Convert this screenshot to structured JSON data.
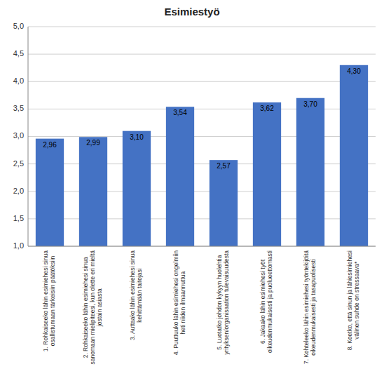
{
  "chart_data": {
    "type": "bar",
    "title": "Esimiestyö",
    "categories": [
      "1. Rohkaiseeko lähin esimiehesi sinua\nosallistumaan tärkeisiin päätöksiin",
      "2. Rohkaiseeko lähin esimiehesi sinua\nsanomaan mielipiteesi, kun olette eri mieltä\njostain asiasta",
      "3. Auttaako lähin esimiehesi sinua\nkehittämään taitojasi",
      "4. Puuttuuko lähin esimiehesi ongelmiin\nheti niiden ilmaannuttua",
      "5. Luotatko johdon kykyyn huolehtia\nyrityksen/organisaation tulevaisuudesta",
      "6. Jakaako lähin esimiehesi työt\noikeudenmukaisesti ja puolueettomasti",
      "7. Kohteleeko lähin esimiehesi työntekijöitä\noikeudenmukaisesti ja tasapuolisesti",
      "8. Koetko, että sinun ja lähiesimiehesi\nvälinen suhde on stressaava*"
    ],
    "values": [
      2.96,
      2.99,
      3.1,
      3.54,
      2.57,
      3.62,
      3.7,
      4.3
    ],
    "value_labels": [
      "2,96",
      "2,99",
      "3,10",
      "3,54",
      "2,57",
      "3,62",
      "3,70",
      "4,30"
    ],
    "color": "#4472C4",
    "ylim": [
      1.0,
      5.0
    ],
    "yticks": [
      {
        "value": 1.0,
        "label": "1,0"
      },
      {
        "value": 1.5,
        "label": "1,5"
      },
      {
        "value": 2.0,
        "label": "2,0"
      },
      {
        "value": 2.5,
        "label": "2,5"
      },
      {
        "value": 3.0,
        "label": "3,0"
      },
      {
        "value": 3.5,
        "label": "3,5"
      },
      {
        "value": 4.0,
        "label": "4,0"
      },
      {
        "value": 4.5,
        "label": "4,5"
      },
      {
        "value": 5.0,
        "label": "5,0"
      }
    ],
    "grid": true,
    "data_labels": true
  }
}
